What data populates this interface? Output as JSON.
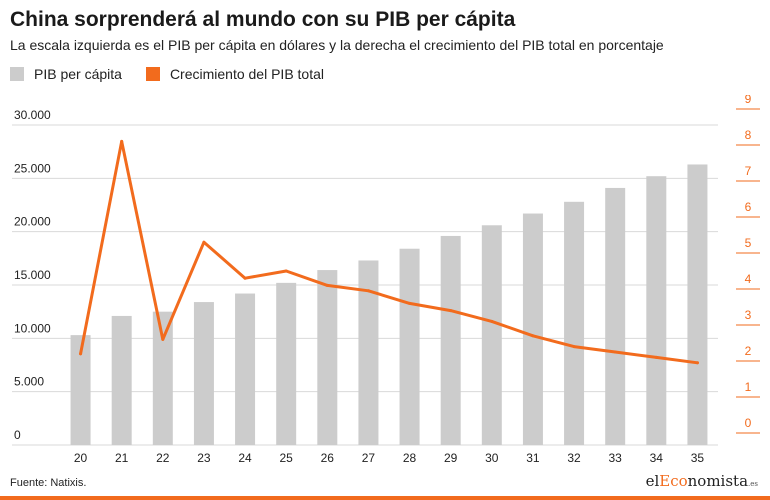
{
  "header": {
    "title": "China sorprenderá al mundo con su PIB per cápita",
    "subtitle": "La escala izquierda es el PIB per cápita en dólares y la derecha el crecimiento del PIB total en porcentaje"
  },
  "legend": {
    "bars_label": "PIB per cápita",
    "line_label": "Crecimiento del PIB total",
    "bars_color": "#cccccc",
    "line_color": "#f26b1d"
  },
  "footer": {
    "source": "Fuente: Natixis.",
    "logo_prefix": "el",
    "logo_accent": "Eco",
    "logo_suffix": "nomista",
    "logo_tld": ".es"
  },
  "chart_data": {
    "type": "bar",
    "categories": [
      "20",
      "21",
      "22",
      "23",
      "24",
      "25",
      "26",
      "27",
      "28",
      "29",
      "30",
      "31",
      "32",
      "33",
      "34",
      "35"
    ],
    "series": [
      {
        "name": "PIB per cápita",
        "type": "bar",
        "axis": "left",
        "color": "#cccccc",
        "values": [
          10300,
          12100,
          12500,
          13400,
          14200,
          15200,
          16400,
          17300,
          18400,
          19600,
          20600,
          21700,
          22800,
          24100,
          25200,
          26300
        ]
      },
      {
        "name": "Crecimiento del PIB total",
        "type": "line",
        "axis": "right",
        "color": "#f26b1d",
        "values": [
          2.2,
          8.1,
          2.6,
          5.3,
          4.3,
          4.5,
          4.1,
          3.95,
          3.6,
          3.4,
          3.1,
          2.7,
          2.4,
          2.25,
          2.1,
          1.95
        ]
      }
    ],
    "y_left": {
      "ticks": [
        "30.000",
        "25.000",
        "20.000",
        "15.000",
        "10.000",
        "5.000",
        "0"
      ],
      "ylim": [
        0,
        30000
      ]
    },
    "y_right": {
      "ticks": [
        "9",
        "8",
        "7",
        "6",
        "5",
        "4",
        "3",
        "2",
        "1",
        "0"
      ],
      "ylim": [
        0,
        9
      ],
      "color": "#f26b1d"
    },
    "grid": true
  }
}
